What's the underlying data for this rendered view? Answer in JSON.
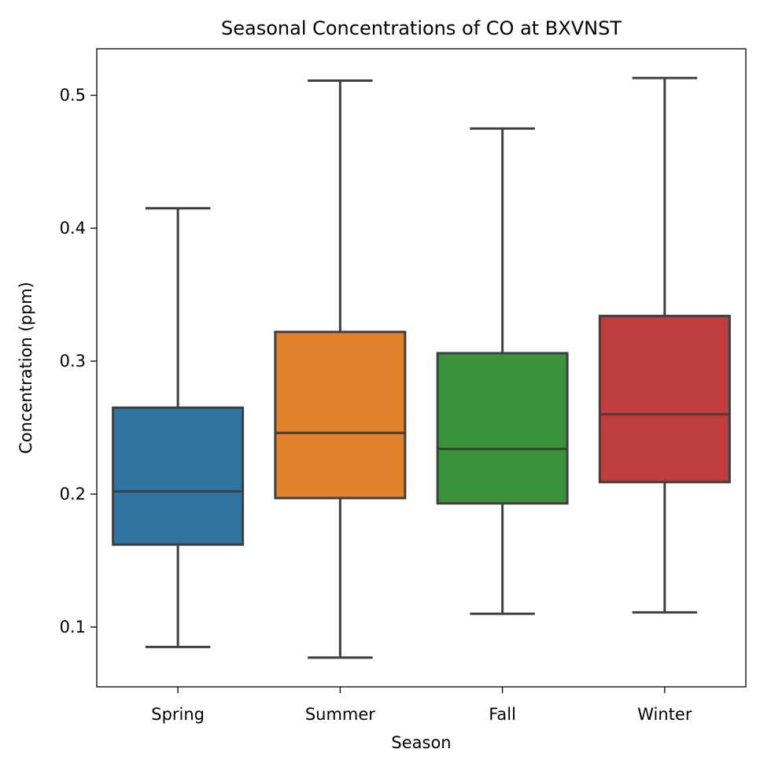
{
  "chart_data": {
    "type": "box",
    "title": "Seasonal Concentrations of CO at BXVNST",
    "xlabel": "Season",
    "ylabel": "Concentration (ppm)",
    "ylim": [
      0.055,
      0.535
    ],
    "yticks": [
      0.1,
      0.2,
      0.3,
      0.4,
      0.5
    ],
    "ytick_labels": [
      "0.1",
      "0.2",
      "0.3",
      "0.4",
      "0.5"
    ],
    "grid": false,
    "categories": [
      "Spring",
      "Summer",
      "Fall",
      "Winter"
    ],
    "boxes": [
      {
        "category": "Spring",
        "whisker_low": 0.085,
        "q1": 0.162,
        "median": 0.202,
        "q3": 0.265,
        "whisker_high": 0.415,
        "color": "#3274a1"
      },
      {
        "category": "Summer",
        "whisker_low": 0.077,
        "q1": 0.197,
        "median": 0.246,
        "q3": 0.322,
        "whisker_high": 0.511,
        "color": "#e1812c"
      },
      {
        "category": "Fall",
        "whisker_low": 0.11,
        "q1": 0.193,
        "median": 0.234,
        "q3": 0.306,
        "whisker_high": 0.475,
        "color": "#3a923a"
      },
      {
        "category": "Winter",
        "whisker_low": 0.111,
        "q1": 0.209,
        "median": 0.26,
        "q3": 0.334,
        "whisker_high": 0.513,
        "color": "#c03d3e"
      }
    ],
    "line_color": "#3f3f3f"
  }
}
